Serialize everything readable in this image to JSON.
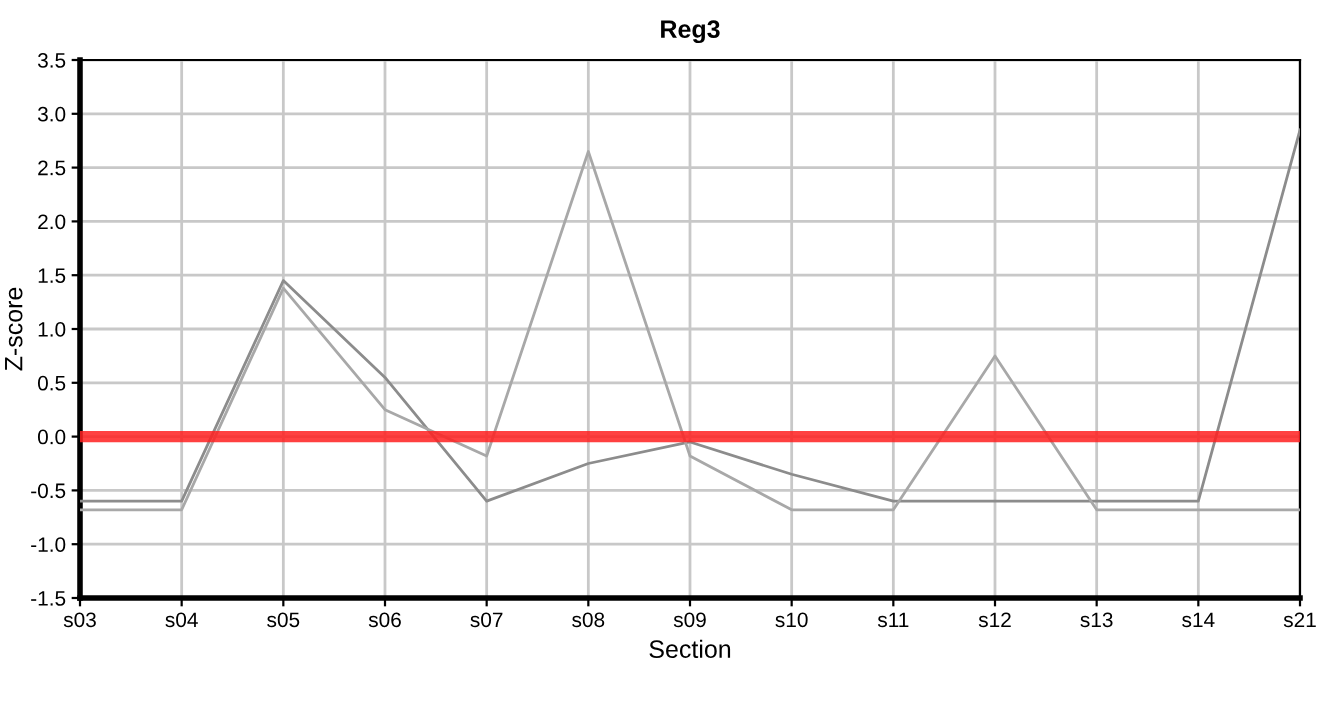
{
  "chart_data": {
    "type": "line",
    "title": "Reg3",
    "xlabel": "Section",
    "ylabel": "Z-score",
    "categories": [
      "s03",
      "s04",
      "s05",
      "s06",
      "s07",
      "s08",
      "s09",
      "s10",
      "s11",
      "s12",
      "s13",
      "s14",
      "s21"
    ],
    "series": [
      {
        "color": "#8c8c8c",
        "values": [
          -0.6,
          -0.6,
          1.45,
          0.55,
          -0.6,
          -0.25,
          -0.05,
          -0.35,
          -0.6,
          -0.6,
          -0.6,
          -0.6,
          2.85
        ]
      },
      {
        "color": "#a8a8a8",
        "values": [
          -0.68,
          -0.68,
          1.38,
          0.25,
          -0.18,
          2.65,
          -0.18,
          -0.68,
          -0.68,
          0.75,
          -0.68,
          -0.68,
          -0.68
        ]
      }
    ],
    "ylim": [
      -1.5,
      3.5
    ],
    "yticks": [
      {
        "value": -1.5,
        "label": "-1.5"
      },
      {
        "value": -1,
        "label": "-1.0"
      },
      {
        "value": -0.5,
        "label": "-0.5"
      },
      {
        "value": 0,
        "label": "0.0"
      },
      {
        "value": 0.5,
        "label": "0.5"
      },
      {
        "value": 1,
        "label": "1.0"
      },
      {
        "value": 1.5,
        "label": "1.5"
      },
      {
        "value": 2,
        "label": "2.0"
      },
      {
        "value": 2.5,
        "label": "2.5"
      },
      {
        "value": 3,
        "label": "3.0"
      },
      {
        "value": 3.5,
        "label": "3.5"
      }
    ],
    "ref_lines": [
      {
        "axis": "y",
        "value": 0,
        "color": "#ff2020"
      }
    ],
    "grid": true,
    "legend": false
  }
}
